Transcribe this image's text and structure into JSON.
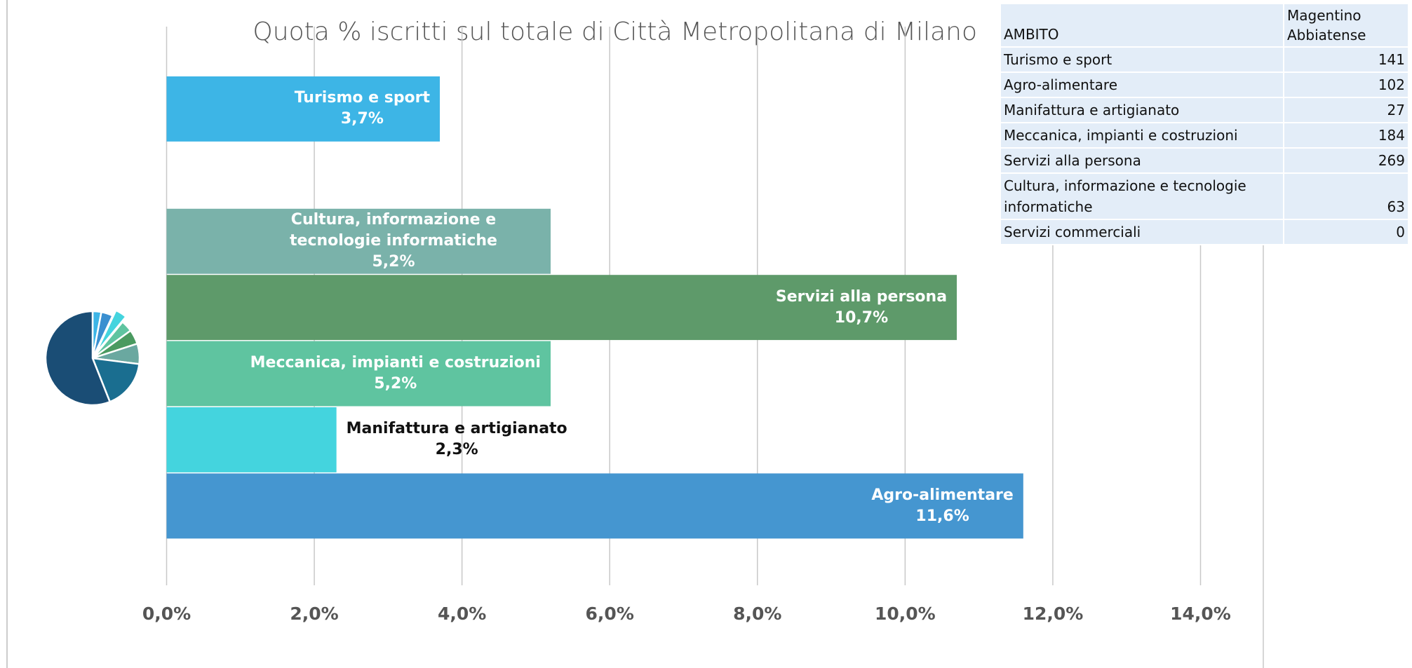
{
  "chart_data": [
    {
      "type": "bar",
      "orientation": "horizontal",
      "title": "Quota % iscritti sul totale di Città Metropolitana di Milano",
      "categories": [
        "Turismo e sport",
        null,
        "Cultura, informazione e tecnologie informatiche",
        "Servizi alla persona",
        "Meccanica, impianti e costruzioni",
        "Manifattura e artigianato",
        "Agro-alimentare"
      ],
      "values": [
        3.7,
        null,
        5.2,
        10.7,
        5.2,
        2.3,
        11.6
      ],
      "value_labels": [
        "3,7%",
        null,
        "5,2%",
        "10,7%",
        "5,2%",
        "2,3%",
        "11,6%"
      ],
      "colors": [
        "#3db5e6",
        null,
        "#7ab2aa",
        "#5e9a6a",
        "#5fc4a0",
        "#44d4de",
        "#4596d0"
      ],
      "xlim": [
        0,
        14.85
      ],
      "xticks": [
        {
          "value": 0,
          "label": "0,0%"
        },
        {
          "value": 2,
          "label": "2,0%"
        },
        {
          "value": 4,
          "label": "4,0%"
        },
        {
          "value": 6,
          "label": "6,0%"
        },
        {
          "value": 8,
          "label": "8,0%"
        },
        {
          "value": 10,
          "label": "10,0%"
        },
        {
          "value": 12,
          "label": "12,0%"
        },
        {
          "value": 14,
          "label": "14,0%"
        }
      ],
      "grid": true
    },
    {
      "type": "pie",
      "values": [
        3,
        4,
        4,
        4,
        5,
        7,
        17,
        56
      ],
      "colors": [
        "#3db5e6",
        "#3a8fd0",
        "#44d4de",
        "#5fc4a0",
        "#4a9a60",
        "#6aa8a0",
        "#1a6e90",
        "#1a4d75"
      ]
    }
  ],
  "table": {
    "header": [
      "AMBITO",
      "Magentino Abbiatense"
    ],
    "rows": [
      [
        "Turismo e sport",
        141
      ],
      [
        "Agro-alimentare",
        102
      ],
      [
        "Manifattura e artigianato",
        27
      ],
      [
        "Meccanica, impianti e costruzioni",
        184
      ],
      [
        "Servizi alla persona",
        269
      ],
      [
        "Cultura, informazione e tecnologie informatiche",
        63
      ],
      [
        "Servizi commerciali",
        0
      ]
    ]
  }
}
